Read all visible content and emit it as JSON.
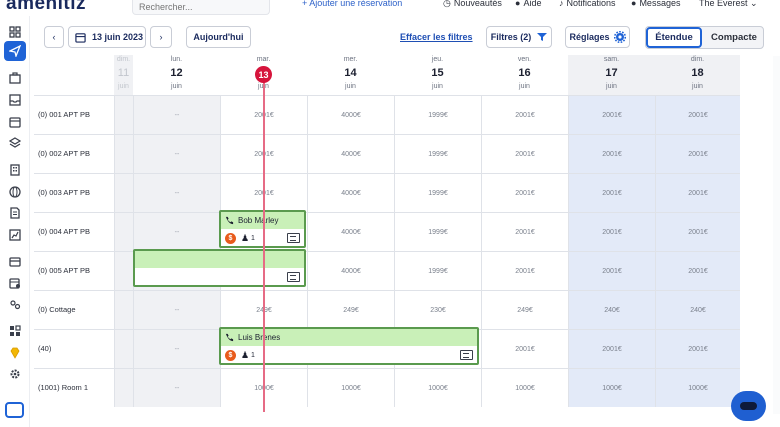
{
  "app": {
    "logo": "amenitiz",
    "search_placeholder": "Rechercher..."
  },
  "topnav": {
    "add_reservation": "+ Ajouter une réservation",
    "news": "Nouveautés",
    "help": "Aide",
    "notifications": "Notifications",
    "messages": "Messages",
    "property": "The Everest"
  },
  "toolbar": {
    "prev": "‹",
    "date": "13 juin 2023",
    "next": "›",
    "today": "Aujourd'hui",
    "clear_filters": "Effacer les filtres",
    "filters": "Filtres (2)",
    "settings": "Réglages",
    "view_extended": "Étendue",
    "view_compact": "Compacte"
  },
  "days": [
    {
      "dow": "dim.",
      "num": "11",
      "mon": "juin",
      "state": "past"
    },
    {
      "dow": "lun.",
      "num": "12",
      "mon": "juin",
      "state": "normal"
    },
    {
      "dow": "mar.",
      "num": "13",
      "mon": "juin",
      "state": "today"
    },
    {
      "dow": "mer.",
      "num": "14",
      "mon": "juin",
      "state": "normal"
    },
    {
      "dow": "jeu.",
      "num": "15",
      "mon": "juin",
      "state": "normal"
    },
    {
      "dow": "ven.",
      "num": "16",
      "mon": "juin",
      "state": "normal"
    },
    {
      "dow": "sam.",
      "num": "17",
      "mon": "juin",
      "state": "weekend"
    },
    {
      "dow": "dim.",
      "num": "18",
      "mon": "juin",
      "state": "weekend"
    }
  ],
  "rooms": [
    {
      "name": "(0) 001 APT PB",
      "prices": [
        "--",
        "2001€",
        "4000€",
        "1999€",
        "2001€",
        "2001€",
        "2001€"
      ]
    },
    {
      "name": "(0) 002 APT PB",
      "prices": [
        "--",
        "2001€",
        "4000€",
        "1999€",
        "2001€",
        "2001€",
        "2001€"
      ]
    },
    {
      "name": "(0) 003 APT PB",
      "prices": [
        "--",
        "2001€",
        "4000€",
        "1999€",
        "2001€",
        "2001€",
        "2001€"
      ]
    },
    {
      "name": "(0) 004 APT PB",
      "prices": [
        "--",
        "",
        "4000€",
        "1999€",
        "2001€",
        "2001€",
        "2001€"
      ]
    },
    {
      "name": "(0) 005 APT PB",
      "prices": [
        "",
        "",
        "4000€",
        "1999€",
        "2001€",
        "2001€",
        "2001€"
      ]
    },
    {
      "name": "(0) Cottage",
      "prices": [
        "--",
        "249€",
        "249€",
        "230€",
        "249€",
        "240€",
        "240€"
      ]
    },
    {
      "name": "(40)",
      "prices": [
        "--",
        "",
        "",
        "",
        "2001€",
        "2001€",
        "2001€"
      ]
    },
    {
      "name": "(1001) Room 1",
      "prices": [
        "--",
        "1000€",
        "1000€",
        "1000€",
        "1000€",
        "1000€",
        "1000€"
      ]
    }
  ],
  "reservations": [
    {
      "guest": "Bob Marley",
      "guests": "1"
    },
    {
      "guest": "",
      "guests": ""
    },
    {
      "guest": "Luis Brenes",
      "guests": "1"
    }
  ],
  "colors": {
    "accent": "#1f63d6",
    "today": "#d6143c",
    "reservation": "#c9f0b8",
    "weekend": "#e3eaf8"
  }
}
